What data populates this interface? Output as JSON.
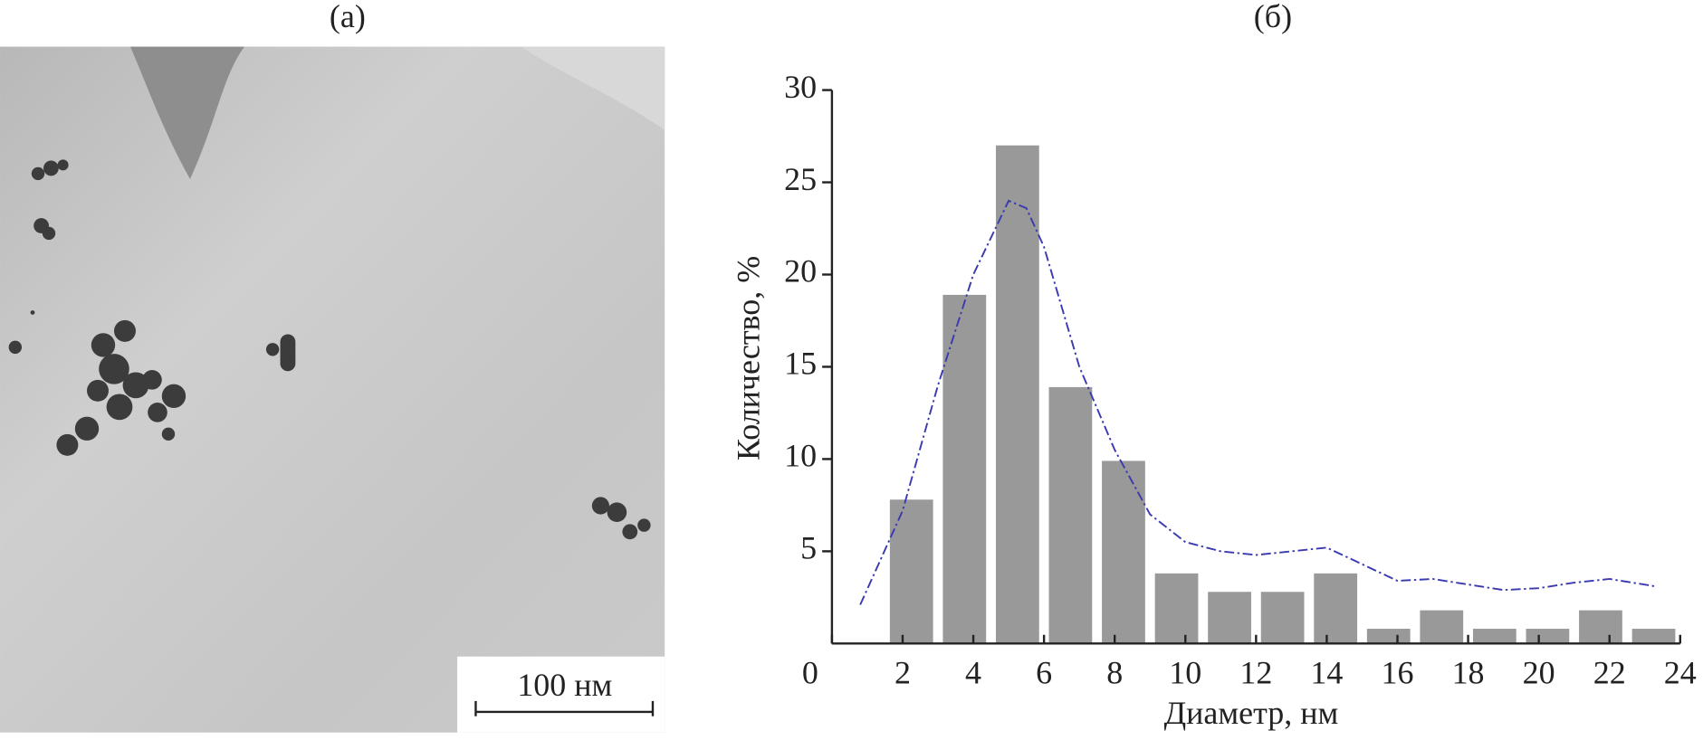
{
  "image_panel": {
    "label": "(а)",
    "scale_bar": "100 нм"
  },
  "chart_data": {
    "type": "histogram",
    "panel_label": "(б)",
    "xlabel": "Диаметр, нм",
    "ylabel": "Количество, %",
    "bins": [
      1.5,
      3,
      4.5,
      6,
      7.5,
      9,
      10.5,
      12,
      13.5,
      15,
      16.5,
      18,
      19.5,
      21,
      22.5,
      24
    ],
    "values": [
      7.8,
      18.9,
      27,
      13.9,
      9.9,
      3.8,
      2.8,
      2.8,
      3.8,
      0.8,
      1.8,
      0.8,
      0.8,
      1.8,
      0.8
    ],
    "color": "#999999",
    "fit": {
      "color": "#3a3ab0",
      "x": [
        0.8,
        2,
        3,
        4,
        5,
        5.5,
        6,
        7,
        8,
        9,
        10,
        11,
        12,
        13,
        14,
        15,
        16,
        17,
        18,
        19,
        20,
        21,
        22,
        23.3
      ],
      "values": [
        2.1,
        7.2,
        14,
        20,
        24,
        23.6,
        21.5,
        15,
        10.5,
        7,
        5.5,
        5,
        4.8,
        5,
        5.2,
        4.3,
        3.4,
        3.5,
        3.2,
        2.9,
        3,
        3.3,
        3.5,
        3.1
      ]
    },
    "xlim": [
      0,
      24
    ],
    "xticks": [
      0,
      2,
      4,
      6,
      8,
      10,
      12,
      14,
      16,
      18,
      20,
      22,
      24
    ],
    "ylim": [
      0,
      30
    ],
    "yticks": [
      5,
      10,
      15,
      20,
      25,
      30
    ]
  }
}
